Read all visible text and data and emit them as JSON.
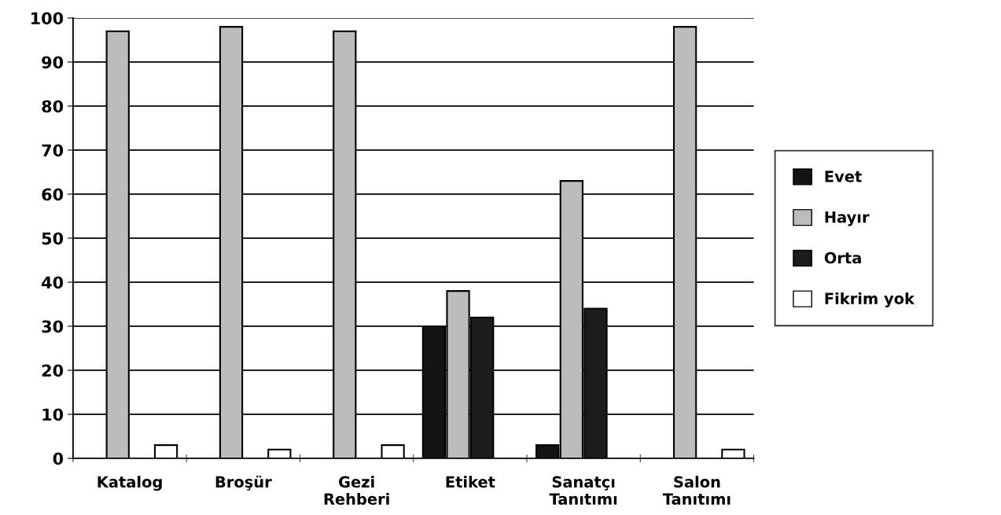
{
  "chart_data": {
    "type": "bar",
    "categories": [
      "Katalog",
      "Broşür",
      "Gezi\nRehberi",
      "Etiket",
      "Sanatçı\nTanıtımı",
      "Salon\nTanıtımı"
    ],
    "series": [
      {
        "name": "Evet",
        "color": "#141414",
        "values": [
          0,
          0,
          0,
          30,
          3,
          0
        ]
      },
      {
        "name": "Hayır",
        "color": "#bcbcbc",
        "values": [
          97,
          98,
          97,
          38,
          63,
          98
        ]
      },
      {
        "name": "Orta",
        "color": "#1c1c1c",
        "values": [
          0,
          0,
          0,
          32,
          34,
          0
        ]
      },
      {
        "name": "Fikrim yok",
        "color": "#ffffff",
        "values": [
          3,
          2,
          3,
          0,
          0,
          2
        ]
      }
    ],
    "ylim": [
      0,
      100
    ],
    "yticks": [
      0,
      10,
      20,
      30,
      40,
      50,
      60,
      70,
      80,
      90,
      100
    ],
    "grid": "y",
    "legend": "right"
  }
}
